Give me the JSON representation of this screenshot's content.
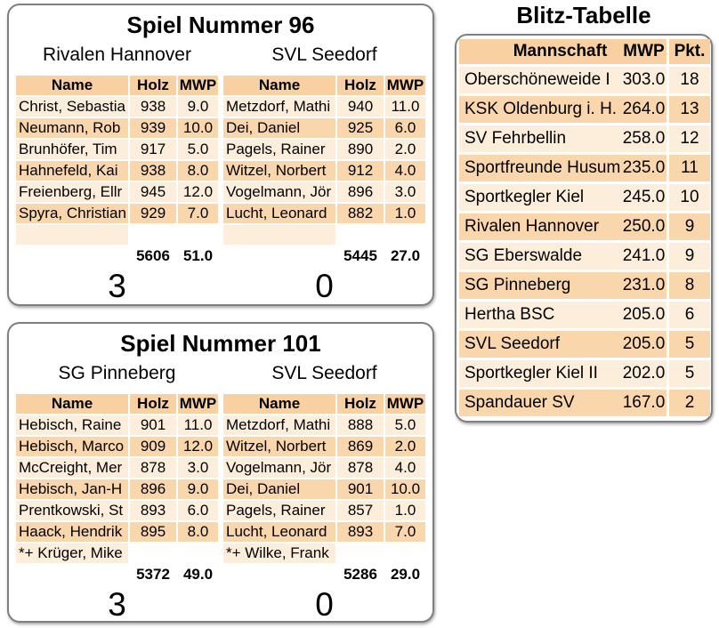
{
  "colors": {
    "header_bg": "#F9D0A1",
    "row_light": "#FDEEDC",
    "row_dark": "#FAD6AD"
  },
  "table_headers": {
    "name": "Name",
    "holz": "Holz",
    "mwp": "MWP"
  },
  "games": [
    {
      "title": "Spiel Nummer 96",
      "home": {
        "name": "Rivalen Hannover",
        "players": [
          {
            "name": "Christ, Sebastia",
            "holz": "938",
            "mwp": "9.0"
          },
          {
            "name": "Neumann, Rob",
            "holz": "939",
            "mwp": "10.0"
          },
          {
            "name": "Brunhöfer, Tim",
            "holz": "917",
            "mwp": "5.0"
          },
          {
            "name": "Hahnefeld, Kai",
            "holz": "938",
            "mwp": "8.0"
          },
          {
            "name": "Freienberg, Ellr",
            "holz": "945",
            "mwp": "12.0"
          },
          {
            "name": "Spyra, Christian",
            "holz": "929",
            "mwp": "7.0"
          }
        ],
        "extra": "",
        "total_holz": "5606",
        "total_mwp": "51.0",
        "score": "3"
      },
      "away": {
        "name": "SVL Seedorf",
        "players": [
          {
            "name": "Metzdorf, Mathi",
            "holz": "940",
            "mwp": "11.0"
          },
          {
            "name": "Dei, Daniel",
            "holz": "925",
            "mwp": "6.0"
          },
          {
            "name": "Pagels, Rainer",
            "holz": "890",
            "mwp": "2.0"
          },
          {
            "name": "Witzel, Norbert",
            "holz": "912",
            "mwp": "4.0"
          },
          {
            "name": "Vogelmann, Jör",
            "holz": "896",
            "mwp": "3.0"
          },
          {
            "name": "Lucht, Leonard",
            "holz": "882",
            "mwp": "1.0"
          }
        ],
        "extra": "",
        "total_holz": "5445",
        "total_mwp": "27.0",
        "score": "0"
      }
    },
    {
      "title": "Spiel Nummer 101",
      "home": {
        "name": "SG Pinneberg",
        "players": [
          {
            "name": "Hebisch, Raine",
            "holz": "901",
            "mwp": "11.0"
          },
          {
            "name": "Hebisch, Marco",
            "holz": "909",
            "mwp": "12.0"
          },
          {
            "name": "McCreight, Mer",
            "holz": "878",
            "mwp": "3.0"
          },
          {
            "name": "Hebisch, Jan-H",
            "holz": "896",
            "mwp": "9.0"
          },
          {
            "name": "Prentkowski, St",
            "holz": "893",
            "mwp": "6.0"
          },
          {
            "name": "Haack, Hendrik",
            "holz": "895",
            "mwp": "8.0"
          }
        ],
        "extra": "*+ Krüger, Mike",
        "total_holz": "5372",
        "total_mwp": "49.0",
        "score": "3"
      },
      "away": {
        "name": "SVL Seedorf",
        "players": [
          {
            "name": "Metzdorf, Mathi",
            "holz": "888",
            "mwp": "5.0"
          },
          {
            "name": "Witzel, Norbert",
            "holz": "869",
            "mwp": "2.0"
          },
          {
            "name": "Vogelmann, Jör",
            "holz": "878",
            "mwp": "4.0"
          },
          {
            "name": "Dei, Daniel",
            "holz": "901",
            "mwp": "10.0"
          },
          {
            "name": "Pagels, Rainer",
            "holz": "857",
            "mwp": "1.0"
          },
          {
            "name": "Lucht, Leonard",
            "holz": "893",
            "mwp": "7.0"
          }
        ],
        "extra": "*+ Wilke, Frank",
        "total_holz": "5286",
        "total_mwp": "29.0",
        "score": "0"
      }
    }
  ],
  "blitz": {
    "title": "Blitz-Tabelle",
    "headers": {
      "team": "Mannschaft",
      "mwp": "MWP",
      "pkt": "Pkt."
    },
    "rows": [
      {
        "team": "Oberschöneweide I",
        "mwp": "303.0",
        "pkt": "18"
      },
      {
        "team": "KSK Oldenburg i. H.",
        "mwp": "264.0",
        "pkt": "13"
      },
      {
        "team": "SV Fehrbellin",
        "mwp": "258.0",
        "pkt": "12"
      },
      {
        "team": "Sportfreunde Husum",
        "mwp": "235.0",
        "pkt": "11"
      },
      {
        "team": "Sportkegler Kiel",
        "mwp": "245.0",
        "pkt": "10"
      },
      {
        "team": "Rivalen Hannover",
        "mwp": "250.0",
        "pkt": "9"
      },
      {
        "team": "SG Eberswalde",
        "mwp": "241.0",
        "pkt": "9"
      },
      {
        "team": "SG Pinneberg",
        "mwp": "231.0",
        "pkt": "8"
      },
      {
        "team": "Hertha BSC",
        "mwp": "205.0",
        "pkt": "6"
      },
      {
        "team": "SVL Seedorf",
        "mwp": "205.0",
        "pkt": "5"
      },
      {
        "team": "Sportkegler Kiel II",
        "mwp": "202.0",
        "pkt": "5"
      },
      {
        "team": "Spandauer SV",
        "mwp": "167.0",
        "pkt": "2"
      }
    ]
  }
}
